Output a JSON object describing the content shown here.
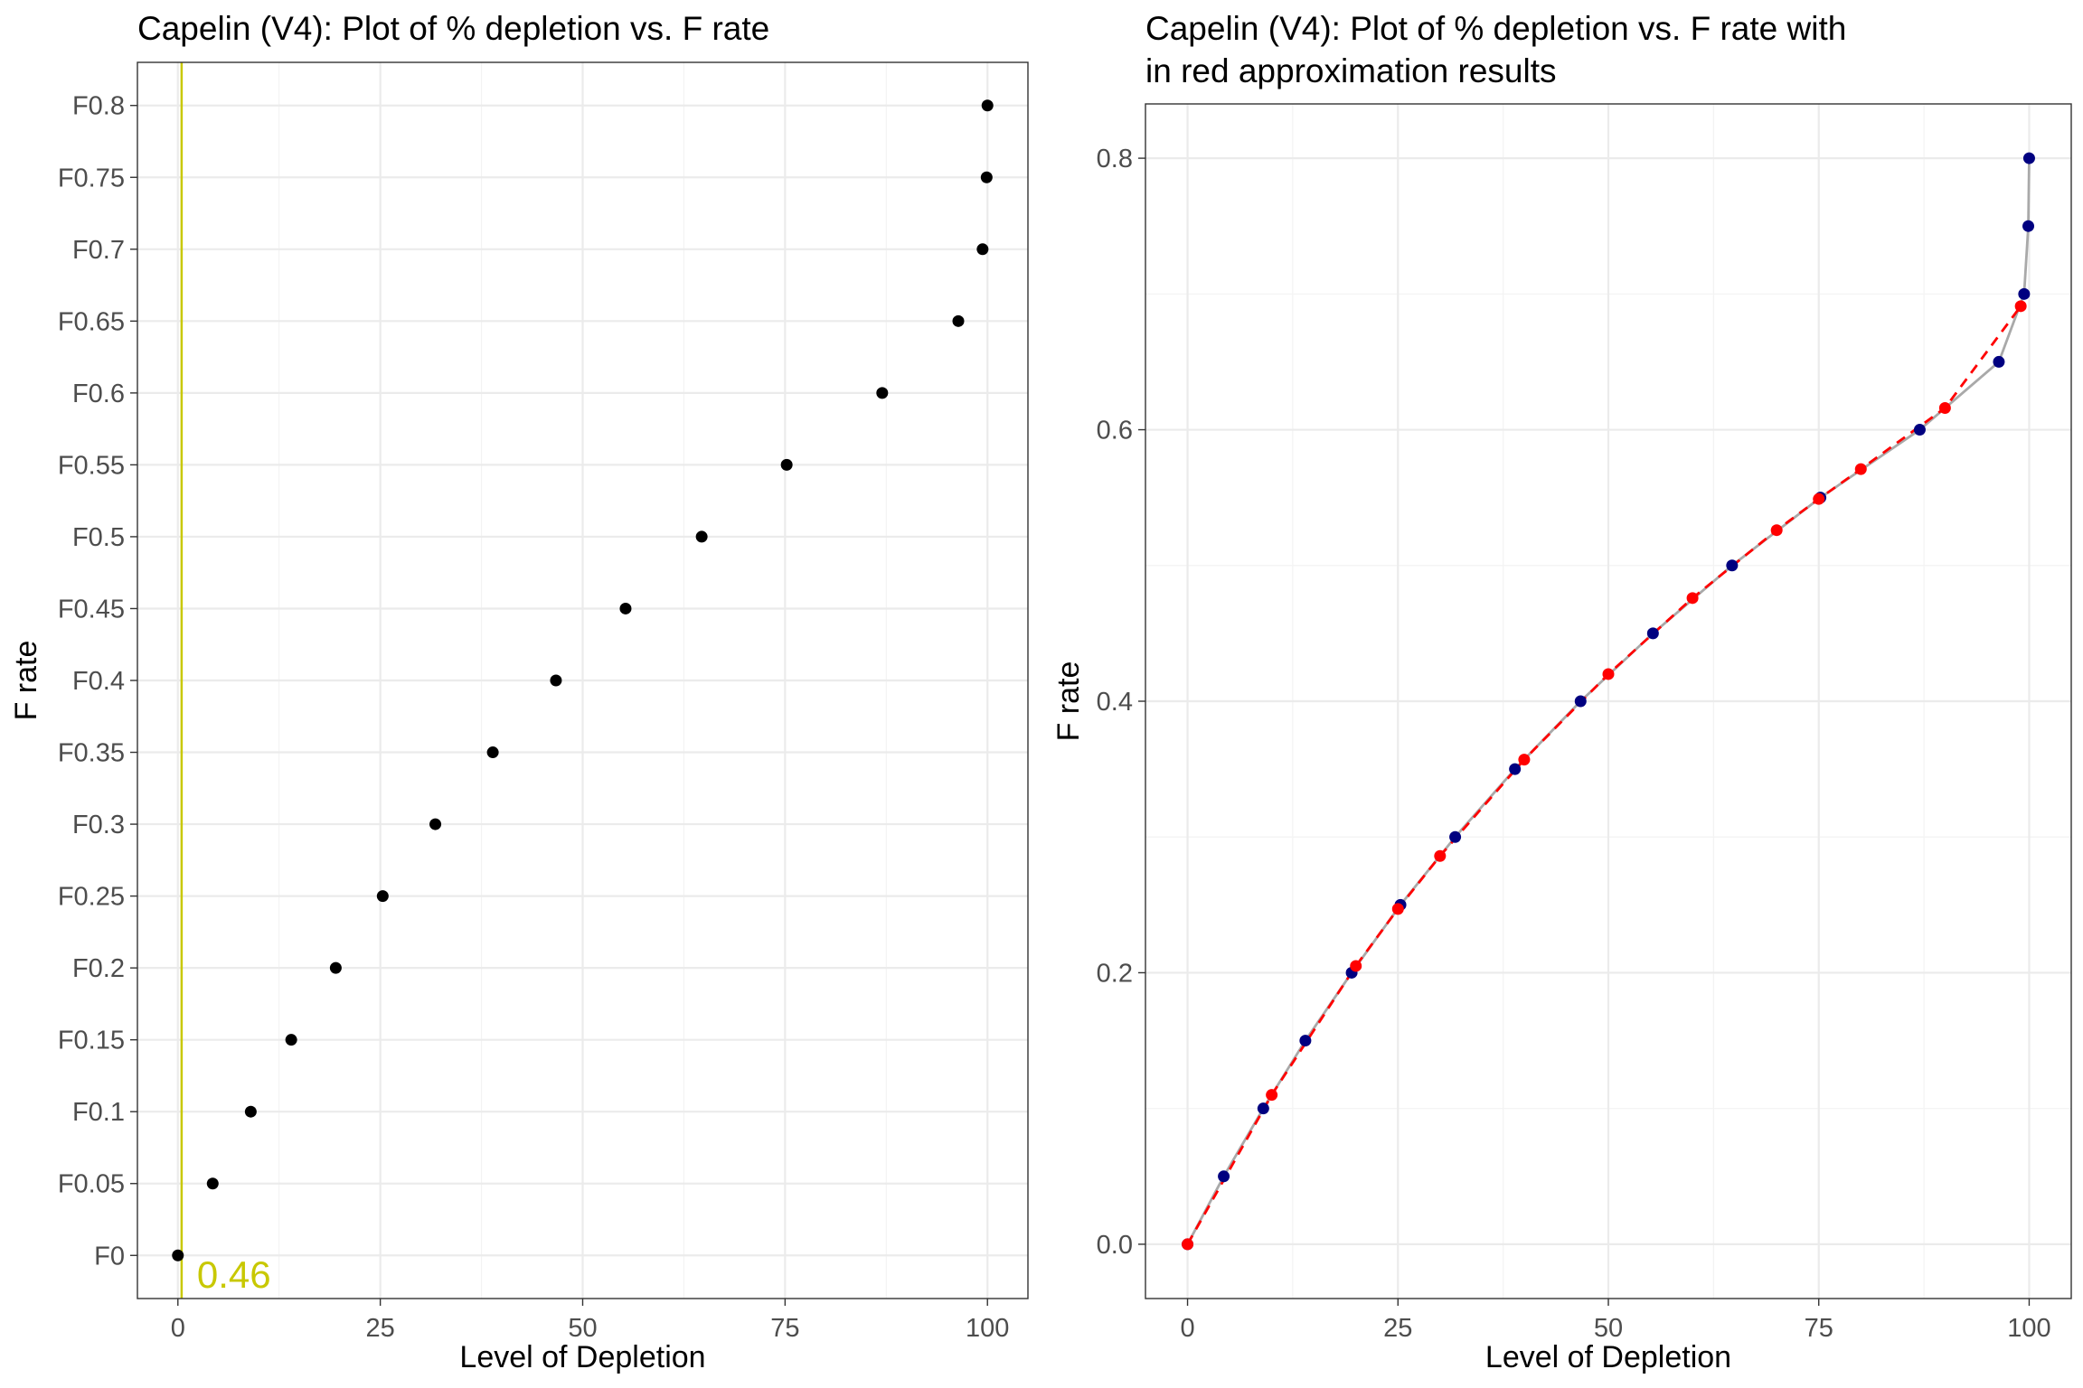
{
  "chart_data": [
    {
      "type": "scatter",
      "title": "Capelin (V4): Plot of % depletion vs. F rate",
      "xlabel": "Level of Depletion",
      "ylabel": "F rate",
      "xlim": [
        -5,
        105
      ],
      "x_ticks": [
        0,
        25,
        50,
        75,
        100
      ],
      "y_categories": [
        "F0",
        "F0.05",
        "F0.1",
        "F0.15",
        "F0.2",
        "F0.25",
        "F0.3",
        "F0.35",
        "F0.4",
        "F0.45",
        "F0.5",
        "F0.55",
        "F0.6",
        "F0.65",
        "F0.7",
        "F0.75",
        "F0.8"
      ],
      "grid": true,
      "series": [
        {
          "color": "#000000",
          "x": [
            0,
            4.3,
            9,
            14,
            19.5,
            25.3,
            31.8,
            38.9,
            46.7,
            55.3,
            64.7,
            75.2,
            87,
            96.4,
            99.4,
            99.9,
            100
          ],
          "y": [
            "F0",
            "F0.05",
            "F0.1",
            "F0.15",
            "F0.2",
            "F0.25",
            "F0.3",
            "F0.35",
            "F0.4",
            "F0.45",
            "F0.5",
            "F0.55",
            "F0.6",
            "F0.65",
            "F0.7",
            "F0.75",
            "F0.8"
          ]
        }
      ],
      "annotations": [
        {
          "type": "vline",
          "x": 0.46,
          "label": "0.46",
          "color": "#c8c800"
        }
      ]
    },
    {
      "type": "line",
      "title": "Capelin (V4): Plot of % depletion vs. F rate with\nin red approximation results",
      "xlabel": "Level of Depletion",
      "ylabel": "F rate",
      "xlim": [
        -5,
        105
      ],
      "ylim": [
        -0.04,
        0.84
      ],
      "x_ticks": [
        0,
        25,
        50,
        75,
        100
      ],
      "y_ticks": [
        0.0,
        0.2,
        0.4,
        0.6,
        0.8
      ],
      "grid": true,
      "series": [
        {
          "line_color": "#a9a9a9",
          "point_color": "#000080",
          "line_style": "solid",
          "x": [
            0,
            4.3,
            9,
            14,
            19.5,
            25.3,
            31.8,
            38.9,
            46.7,
            55.3,
            64.7,
            75.2,
            87,
            96.4,
            99.4,
            99.9,
            100
          ],
          "y": [
            0,
            0.05,
            0.1,
            0.15,
            0.2,
            0.25,
            0.3,
            0.35,
            0.4,
            0.45,
            0.5,
            0.55,
            0.6,
            0.65,
            0.7,
            0.75,
            0.8
          ]
        },
        {
          "line_color": "#ff0000",
          "point_color": "#ff0000",
          "line_style": "dashed",
          "x": [
            0,
            10,
            20,
            25,
            30,
            40,
            50,
            60,
            70,
            75,
            80,
            90,
            99
          ],
          "y": [
            0,
            0.11,
            0.205,
            0.247,
            0.286,
            0.357,
            0.42,
            0.476,
            0.526,
            0.549,
            0.571,
            0.616,
            0.691
          ]
        }
      ]
    }
  ]
}
